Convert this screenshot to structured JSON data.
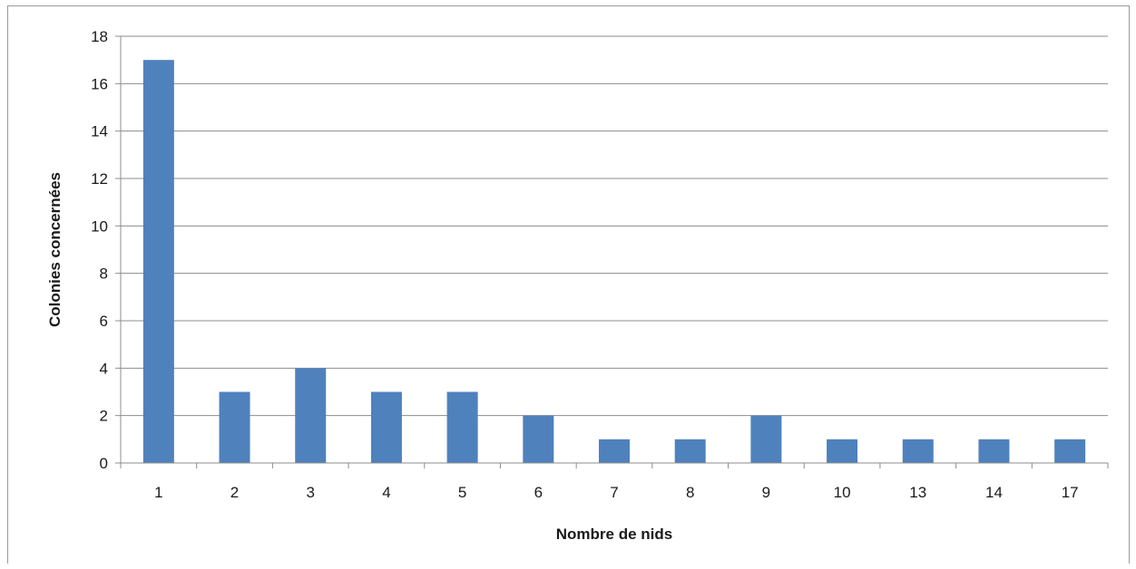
{
  "chart_data": {
    "type": "bar",
    "title": "",
    "xlabel": "Nombre de nids",
    "ylabel": "Colonies concernées",
    "categories": [
      "1",
      "2",
      "3",
      "4",
      "5",
      "6",
      "7",
      "8",
      "9",
      "10",
      "13",
      "14",
      "17"
    ],
    "values": [
      17,
      3,
      4,
      3,
      3,
      2,
      1,
      1,
      2,
      1,
      1,
      1,
      1
    ],
    "ylim": [
      0,
      18
    ],
    "yticks": [
      0,
      2,
      4,
      6,
      8,
      10,
      12,
      14,
      16,
      18
    ],
    "grid": true,
    "legend": "none",
    "bar_color": "#4F81BD",
    "grid_color": "#8c8c8c"
  }
}
